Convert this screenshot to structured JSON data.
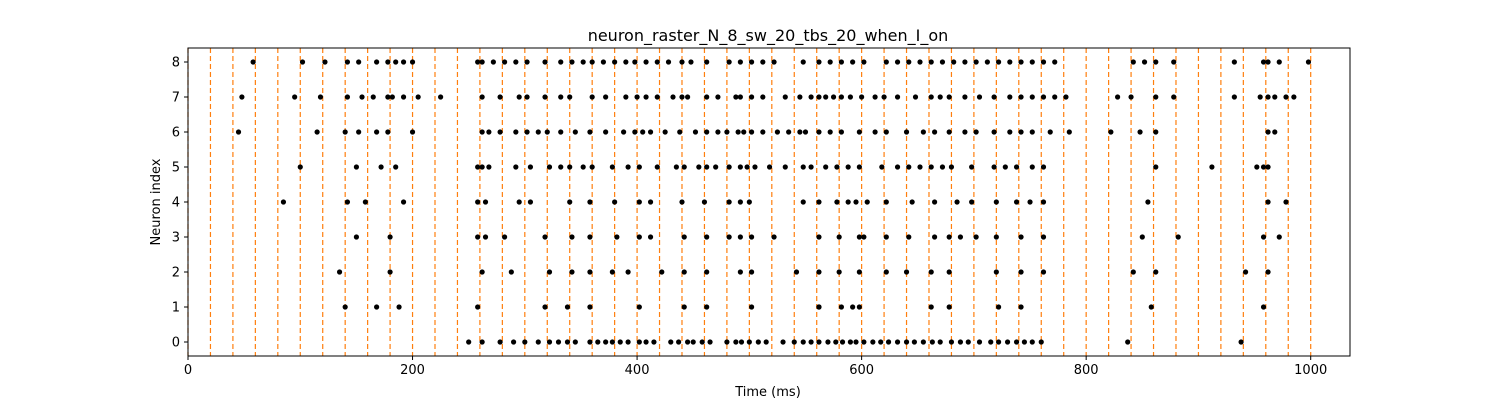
{
  "chart_data": {
    "type": "scatter",
    "title": "neuron_raster_N_8_sw_20_tbs_20_when_I_on",
    "xlabel": "Time (ms)",
    "ylabel": "Neuron index",
    "xlim": [
      0,
      1035
    ],
    "ylim": [
      -0.4,
      8.4
    ],
    "xticks": [
      0,
      200,
      400,
      600,
      800,
      1000
    ],
    "yticks": [
      0,
      1,
      2,
      3,
      4,
      5,
      6,
      7,
      8
    ],
    "grid": false,
    "legend": "none",
    "colors": {
      "spikes": "#000000",
      "boundaries": "#ff7f0e"
    },
    "boundaries": [
      0,
      20,
      40,
      60,
      80,
      100,
      120,
      140,
      160,
      180,
      200,
      220,
      240,
      260,
      280,
      300,
      320,
      340,
      360,
      380,
      400,
      420,
      440,
      460,
      480,
      500,
      520,
      540,
      560,
      580,
      600,
      620,
      640,
      660,
      680,
      700,
      720,
      740,
      760,
      780,
      800,
      820,
      840,
      860,
      880,
      900,
      920,
      940,
      960,
      980,
      1000
    ],
    "spikes": [
      {
        "neuron": 0,
        "times": [
          250,
          262,
          278,
          290,
          300,
          312,
          322,
          330,
          338,
          345,
          358,
          365,
          372,
          378,
          385,
          392,
          402,
          408,
          415,
          430,
          437,
          445,
          450,
          458,
          465,
          480,
          488,
          493,
          500,
          508,
          515,
          530,
          540,
          548,
          555,
          562,
          570,
          577,
          583,
          590,
          595,
          602,
          610,
          617,
          624,
          632,
          640,
          647,
          655,
          663,
          670,
          680,
          688,
          695,
          705,
          715,
          722,
          730,
          738,
          745,
          752,
          760,
          837,
          938
        ]
      },
      {
        "neuron": 1,
        "times": [
          140,
          168,
          188,
          258,
          318,
          338,
          358,
          402,
          442,
          462,
          502,
          562,
          598,
          562,
          582,
          592,
          662,
          678,
          722,
          742,
          858,
          958
        ]
      },
      {
        "neuron": 2,
        "times": [
          135,
          180,
          262,
          288,
          322,
          342,
          358,
          378,
          392,
          422,
          442,
          462,
          492,
          502,
          542,
          562,
          580,
          598,
          622,
          640,
          662,
          678,
          720,
          742,
          762,
          842,
          862,
          942,
          962
        ]
      },
      {
        "neuron": 3,
        "times": [
          150,
          180,
          258,
          265,
          282,
          318,
          342,
          358,
          382,
          402,
          412,
          442,
          462,
          482,
          492,
          502,
          522,
          562,
          580,
          598,
          602,
          622,
          642,
          665,
          678,
          688,
          702,
          720,
          742,
          762,
          850,
          882,
          958,
          972
        ]
      },
      {
        "neuron": 4,
        "times": [
          85,
          142,
          158,
          192,
          258,
          265,
          295,
          305,
          340,
          358,
          380,
          402,
          412,
          440,
          460,
          482,
          492,
          500,
          548,
          562,
          578,
          588,
          595,
          605,
          622,
          645,
          665,
          685,
          698,
          720,
          738,
          750,
          762,
          855,
          962,
          978
        ]
      },
      {
        "neuron": 5,
        "times": [
          100,
          150,
          172,
          185,
          258,
          262,
          268,
          292,
          305,
          322,
          332,
          340,
          352,
          360,
          378,
          392,
          402,
          418,
          435,
          442,
          455,
          462,
          470,
          482,
          492,
          498,
          505,
          518,
          532,
          548,
          555,
          568,
          578,
          588,
          598,
          618,
          632,
          642,
          652,
          662,
          672,
          680,
          698,
          718,
          728,
          738,
          752,
          762,
          862,
          912,
          952,
          958,
          962
        ]
      },
      {
        "neuron": 6,
        "times": [
          45,
          115,
          140,
          152,
          168,
          178,
          200,
          262,
          268,
          278,
          292,
          302,
          312,
          320,
          332,
          345,
          358,
          372,
          388,
          398,
          405,
          412,
          425,
          438,
          452,
          462,
          472,
          480,
          490,
          495,
          502,
          512,
          525,
          535,
          545,
          550,
          562,
          572,
          582,
          598,
          612,
          622,
          640,
          655,
          665,
          678,
          692,
          702,
          718,
          732,
          742,
          752,
          768,
          785,
          822,
          848,
          862,
          962,
          968
        ]
      },
      {
        "neuron": 7,
        "times": [
          48,
          95,
          118,
          142,
          155,
          165,
          178,
          182,
          192,
          205,
          225,
          262,
          278,
          295,
          302,
          318,
          332,
          340,
          360,
          372,
          390,
          400,
          408,
          418,
          432,
          440,
          445,
          462,
          472,
          488,
          492,
          502,
          512,
          532,
          545,
          555,
          562,
          568,
          575,
          582,
          590,
          600,
          612,
          620,
          632,
          648,
          662,
          670,
          678,
          692,
          705,
          718,
          732,
          742,
          752,
          762,
          772,
          782,
          828,
          840,
          862,
          878,
          932,
          955,
          962,
          968,
          978,
          985
        ]
      },
      {
        "neuron": 8,
        "times": [
          58,
          102,
          122,
          142,
          152,
          168,
          178,
          185,
          192,
          200,
          258,
          262,
          272,
          282,
          292,
          302,
          318,
          332,
          342,
          352,
          360,
          370,
          380,
          390,
          398,
          408,
          418,
          428,
          440,
          448,
          462,
          482,
          492,
          502,
          512,
          522,
          548,
          562,
          572,
          582,
          592,
          602,
          622,
          632,
          642,
          652,
          662,
          672,
          682,
          692,
          702,
          712,
          722,
          732,
          742,
          752,
          762,
          772,
          842,
          852,
          862,
          878,
          932,
          958,
          962,
          972,
          998
        ]
      }
    ]
  }
}
